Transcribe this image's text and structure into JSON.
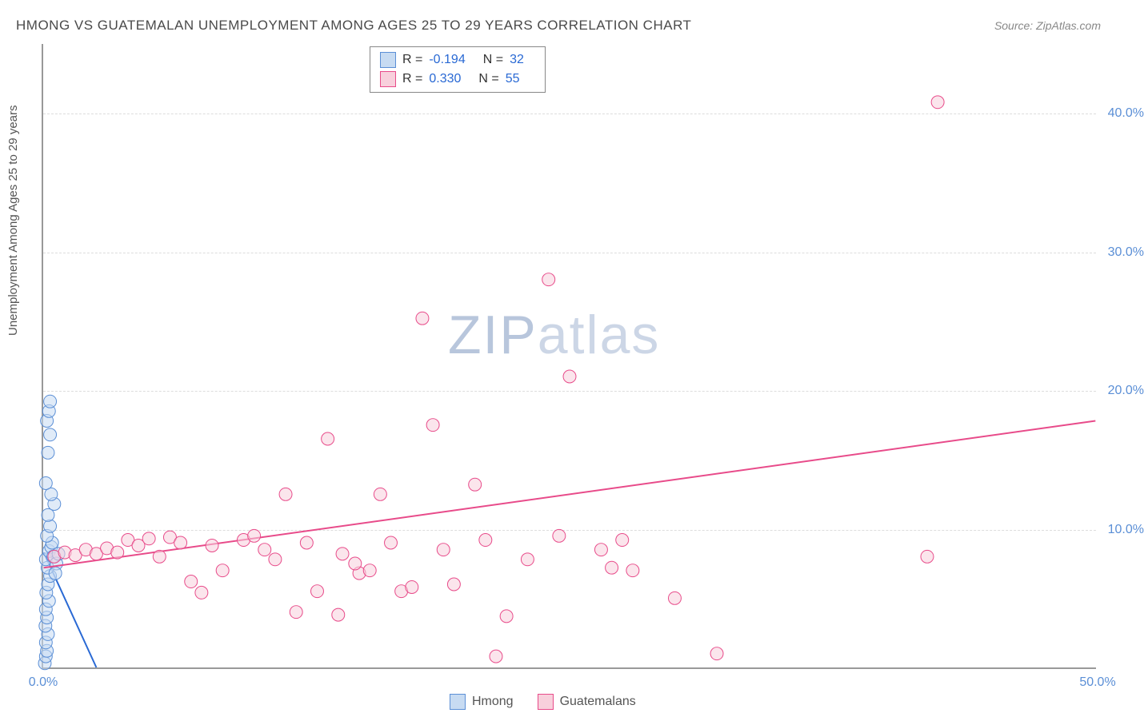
{
  "title": "HMONG VS GUATEMALAN UNEMPLOYMENT AMONG AGES 25 TO 29 YEARS CORRELATION CHART",
  "source": "Source: ZipAtlas.com",
  "ylabel": "Unemployment Among Ages 25 to 29 years",
  "watermark_zip": "ZIP",
  "watermark_atlas": "atlas",
  "chart": {
    "type": "scatter",
    "xlim": [
      0,
      50
    ],
    "ylim": [
      0,
      45
    ],
    "xticks": [
      {
        "val": 0,
        "label": "0.0%"
      },
      {
        "val": 50,
        "label": "50.0%"
      }
    ],
    "yticks": [
      {
        "val": 10,
        "label": "10.0%"
      },
      {
        "val": 20,
        "label": "20.0%"
      },
      {
        "val": 30,
        "label": "30.0%"
      },
      {
        "val": 40,
        "label": "40.0%"
      }
    ],
    "grid_color": "#dddddd",
    "axis_color": "#999999",
    "background_color": "#ffffff",
    "marker_radius": 8,
    "series": [
      {
        "name": "Hmong",
        "fill": "#c7dbf2",
        "stroke": "#5b8fd6",
        "fill_opacity": 0.55,
        "r_value": "-0.194",
        "n_value": "32",
        "trend": {
          "x1": 0,
          "y1": 8.3,
          "x2": 2.5,
          "y2": 0,
          "color": "#2969d4",
          "width": 2
        },
        "points": [
          [
            0.05,
            0.3
          ],
          [
            0.1,
            0.8
          ],
          [
            0.15,
            1.2
          ],
          [
            0.1,
            1.8
          ],
          [
            0.2,
            2.4
          ],
          [
            0.08,
            3.0
          ],
          [
            0.15,
            3.6
          ],
          [
            0.1,
            4.2
          ],
          [
            0.25,
            4.8
          ],
          [
            0.12,
            5.4
          ],
          [
            0.2,
            6.0
          ],
          [
            0.3,
            6.6
          ],
          [
            0.18,
            7.2
          ],
          [
            0.1,
            7.8
          ],
          [
            0.25,
            8.4
          ],
          [
            0.35,
            8.7
          ],
          [
            0.4,
            9.0
          ],
          [
            0.15,
            9.5
          ],
          [
            0.3,
            10.2
          ],
          [
            0.2,
            11.0
          ],
          [
            0.5,
            11.8
          ],
          [
            0.35,
            12.5
          ],
          [
            0.1,
            13.3
          ],
          [
            0.2,
            15.5
          ],
          [
            0.3,
            16.8
          ],
          [
            0.15,
            17.8
          ],
          [
            0.25,
            18.5
          ],
          [
            0.3,
            19.2
          ],
          [
            0.45,
            8.0
          ],
          [
            0.6,
            7.5
          ],
          [
            0.7,
            8.2
          ],
          [
            0.55,
            6.8
          ]
        ]
      },
      {
        "name": "Guatemalans",
        "fill": "#f8d0dc",
        "stroke": "#e84b8a",
        "fill_opacity": 0.55,
        "r_value": "0.330",
        "n_value": "55",
        "trend": {
          "x1": 0,
          "y1": 7.2,
          "x2": 50,
          "y2": 17.8,
          "color": "#e84b8a",
          "width": 2
        },
        "points": [
          [
            0.5,
            8.0
          ],
          [
            1.0,
            8.3
          ],
          [
            1.5,
            8.1
          ],
          [
            2.0,
            8.5
          ],
          [
            2.5,
            8.2
          ],
          [
            3.0,
            8.6
          ],
          [
            3.5,
            8.3
          ],
          [
            4.0,
            9.2
          ],
          [
            4.5,
            8.8
          ],
          [
            5.0,
            9.3
          ],
          [
            5.5,
            8.0
          ],
          [
            6.0,
            9.4
          ],
          [
            6.5,
            9.0
          ],
          [
            7.0,
            6.2
          ],
          [
            7.5,
            5.4
          ],
          [
            8.5,
            7.0
          ],
          [
            9.5,
            9.2
          ],
          [
            10.0,
            9.5
          ],
          [
            11.0,
            7.8
          ],
          [
            11.5,
            12.5
          ],
          [
            12.0,
            4.0
          ],
          [
            12.5,
            9.0
          ],
          [
            13.0,
            5.5
          ],
          [
            13.5,
            16.5
          ],
          [
            14.0,
            3.8
          ],
          [
            14.2,
            8.2
          ],
          [
            15.0,
            6.8
          ],
          [
            15.5,
            7.0
          ],
          [
            16.0,
            12.5
          ],
          [
            16.5,
            9.0
          ],
          [
            17.0,
            5.5
          ],
          [
            17.5,
            5.8
          ],
          [
            18.0,
            25.2
          ],
          [
            18.5,
            17.5
          ],
          [
            19.0,
            8.5
          ],
          [
            19.5,
            6.0
          ],
          [
            20.5,
            13.2
          ],
          [
            21.0,
            9.2
          ],
          [
            21.5,
            0.8
          ],
          [
            22.0,
            3.7
          ],
          [
            23.0,
            7.8
          ],
          [
            24.0,
            28.0
          ],
          [
            24.5,
            9.5
          ],
          [
            25.0,
            21.0
          ],
          [
            26.5,
            8.5
          ],
          [
            27.5,
            9.2
          ],
          [
            28.0,
            7.0
          ],
          [
            30.0,
            5.0
          ],
          [
            32.0,
            1.0
          ],
          [
            42.0,
            8.0
          ],
          [
            42.5,
            40.8
          ],
          [
            27.0,
            7.2
          ],
          [
            8.0,
            8.8
          ],
          [
            10.5,
            8.5
          ],
          [
            14.8,
            7.5
          ]
        ]
      }
    ]
  },
  "legend_labels": {
    "hmong": "Hmong",
    "guatemalans": "Guatemalans",
    "r_prefix": "R =",
    "n_prefix": "N ="
  }
}
